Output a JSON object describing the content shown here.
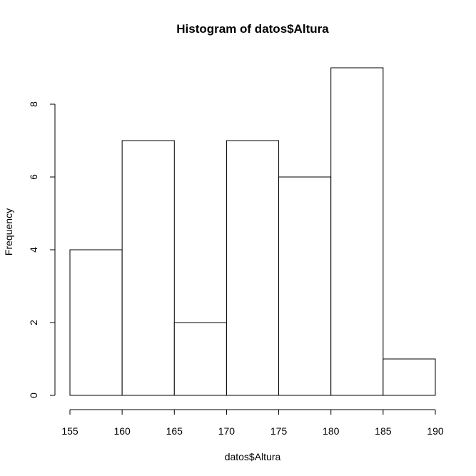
{
  "chart_data": {
    "type": "bar",
    "title": "Histogram of datos$Altura",
    "xlabel": "datos$Altura",
    "ylabel": "Frequency",
    "bins": [
      {
        "from": 155,
        "to": 160,
        "count": 4
      },
      {
        "from": 160,
        "to": 165,
        "count": 7
      },
      {
        "from": 165,
        "to": 170,
        "count": 2
      },
      {
        "from": 170,
        "to": 175,
        "count": 7
      },
      {
        "from": 175,
        "to": 180,
        "count": 6
      },
      {
        "from": 180,
        "to": 185,
        "count": 9
      },
      {
        "from": 185,
        "to": 190,
        "count": 1
      }
    ],
    "xlim": [
      155,
      190
    ],
    "ylim": [
      0,
      9
    ],
    "x_ticks": [
      "155",
      "160",
      "165",
      "170",
      "175",
      "180",
      "185",
      "190"
    ],
    "y_ticks": [
      "0",
      "2",
      "4",
      "6",
      "8"
    ],
    "grid": false,
    "legend": "none",
    "colors": {
      "bar_fill": "#ffffff",
      "bar_stroke": "#000000",
      "axis": "#000000"
    }
  }
}
